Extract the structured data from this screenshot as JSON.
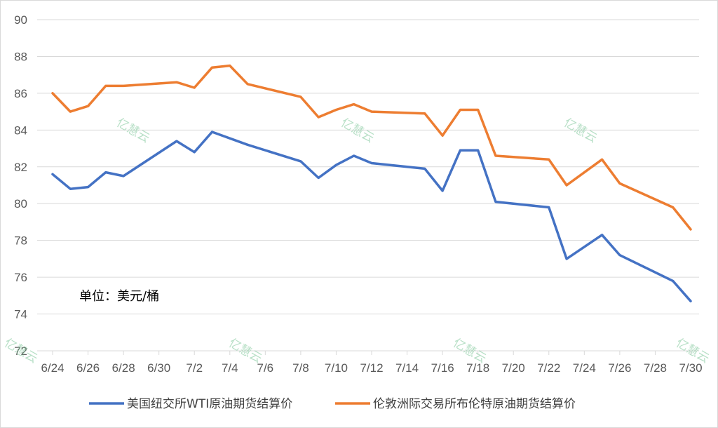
{
  "chart_data": {
    "type": "line",
    "title": "",
    "xlabel": "",
    "ylabel": "",
    "unit_label": "单位：美元/桶",
    "watermark": "亿慧云",
    "ylim": [
      72,
      90
    ],
    "yticks": [
      72,
      74,
      76,
      78,
      80,
      82,
      84,
      86,
      88,
      90
    ],
    "xlim": [
      "6/24",
      "7/30"
    ],
    "xticks": [
      "6/24",
      "6/26",
      "6/28",
      "6/30",
      "7/2",
      "7/4",
      "7/6",
      "7/8",
      "7/10",
      "7/12",
      "7/14",
      "7/16",
      "7/18",
      "7/20",
      "7/22",
      "7/24",
      "7/26",
      "7/28",
      "7/30"
    ],
    "grid": true,
    "legend_position": "bottom",
    "series": [
      {
        "name": "美国纽交所WTI原油期货结算价",
        "color": "#4472c4",
        "x": [
          "6/24",
          "6/25",
          "6/26",
          "6/27",
          "6/28",
          "7/1",
          "7/2",
          "7/3",
          "7/5",
          "7/8",
          "7/9",
          "7/10",
          "7/11",
          "7/12",
          "7/15",
          "7/16",
          "7/17",
          "7/18",
          "7/19",
          "7/22",
          "7/23",
          "7/25",
          "7/26",
          "7/29",
          "7/30"
        ],
        "y": [
          81.6,
          80.8,
          80.9,
          81.7,
          81.5,
          83.4,
          82.8,
          83.9,
          83.2,
          82.3,
          81.4,
          82.1,
          82.6,
          82.2,
          81.9,
          80.7,
          82.9,
          82.9,
          80.1,
          79.8,
          77.0,
          78.3,
          77.2,
          75.8,
          74.7
        ]
      },
      {
        "name": "伦敦洲际交易所布伦特原油期货结算价",
        "color": "#ed7d31",
        "x": [
          "6/24",
          "6/25",
          "6/26",
          "6/27",
          "6/28",
          "7/1",
          "7/2",
          "7/3",
          "7/4",
          "7/5",
          "7/8",
          "7/9",
          "7/10",
          "7/11",
          "7/12",
          "7/15",
          "7/16",
          "7/17",
          "7/18",
          "7/19",
          "7/22",
          "7/23",
          "7/25",
          "7/26",
          "7/29",
          "7/30"
        ],
        "y": [
          86.0,
          85.0,
          85.3,
          86.4,
          86.4,
          86.6,
          86.3,
          87.4,
          87.5,
          86.5,
          85.8,
          84.7,
          85.1,
          85.4,
          85.0,
          84.9,
          83.7,
          85.1,
          85.1,
          82.6,
          82.4,
          81.0,
          82.4,
          81.1,
          79.8,
          78.6
        ]
      }
    ]
  }
}
